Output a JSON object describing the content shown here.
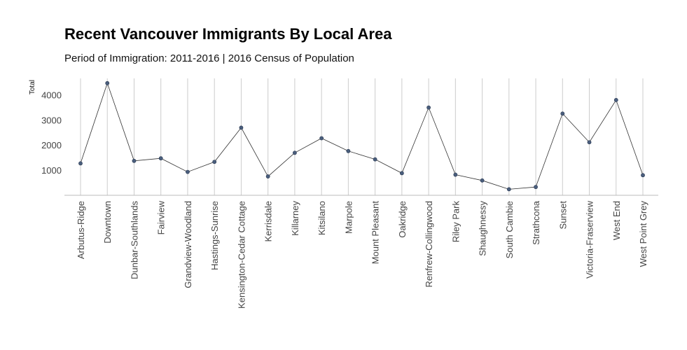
{
  "chart": {
    "title": "Recent Vancouver Immigrants By Local Area",
    "subtitle": "Period of Immigration: 2011-2016 | 2016 Census of Population"
  },
  "chart_data": {
    "type": "line",
    "title": "Recent Vancouver Immigrants By Local Area",
    "subtitle": "Period of Immigration: 2011-2016 | 2016 Census of Population",
    "xlabel": "",
    "ylabel": "Total",
    "ylim": [
      0,
      4650
    ],
    "yticks": [
      1000,
      2000,
      3000,
      4000
    ],
    "grid": "vertical",
    "colors": {
      "line": "#333333",
      "point": "#4a5e7d",
      "grid": "#cccccc",
      "axis": "#bbbbbb"
    },
    "categories": [
      "Arbutus-Ridge",
      "Downtown",
      "Dunbar-Southlands",
      "Fairview",
      "Grandview-Woodland",
      "Hastings-Sunrise",
      "Kensington-Cedar Cottage",
      "Kerrisdale",
      "Killarney",
      "Kitsilano",
      "Marpole",
      "Mount Pleasant",
      "Oakridge",
      "Renfrew-Collingwood",
      "Riley Park",
      "Shaughnessy",
      "South Cambie",
      "Strathcona",
      "Sunset",
      "Victoria-Fraserview",
      "West End",
      "West Point Grey"
    ],
    "series": [
      {
        "values": [
          1270,
          4460,
          1370,
          1470,
          930,
          1330,
          2690,
          750,
          1690,
          2270,
          1760,
          1430,
          880,
          3490,
          820,
          590,
          240,
          330,
          3250,
          2110,
          3790,
          800
        ]
      }
    ]
  }
}
